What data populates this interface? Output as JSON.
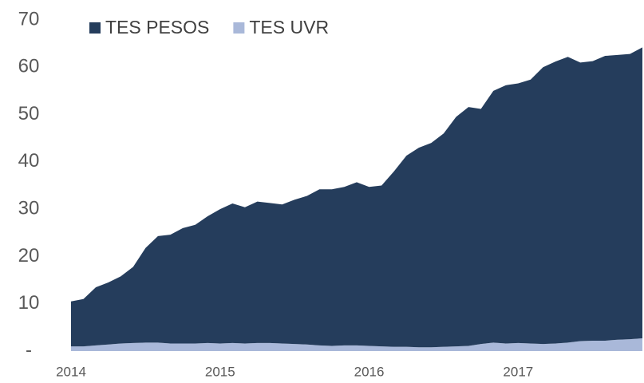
{
  "chart_data": {
    "type": "stacked-area",
    "categories": [
      "2014",
      null,
      null,
      null,
      null,
      null,
      null,
      null,
      null,
      null,
      null,
      null,
      "2015",
      null,
      null,
      null,
      null,
      null,
      null,
      null,
      null,
      null,
      null,
      null,
      "2016",
      null,
      null,
      null,
      null,
      null,
      null,
      null,
      null,
      null,
      null,
      null,
      "2017",
      null,
      null,
      null,
      null,
      null,
      null,
      null,
      null,
      null,
      null
    ],
    "series": [
      {
        "name": "TES PESOS",
        "color": "#253d5c",
        "values": [
          9.5,
          10.0,
          12.3,
          13.1,
          14.2,
          16.1,
          20.0,
          22.5,
          23.0,
          24.4,
          25.1,
          26.8,
          28.4,
          29.5,
          28.8,
          29.9,
          29.6,
          29.4,
          30.5,
          31.4,
          33.0,
          33.1,
          33.5,
          34.5,
          33.6,
          34.0,
          37.1,
          40.4,
          42.2,
          43.2,
          45.1,
          48.5,
          50.5,
          49.7,
          53.2,
          54.6,
          54.9,
          55.8,
          58.5,
          59.6,
          60.4,
          58.9,
          59.1,
          60.2,
          60.2,
          60.3,
          61.5
        ]
      },
      {
        "name": "TES UVR",
        "color": "#a9b8d9",
        "values": [
          1.0,
          1.0,
          1.2,
          1.4,
          1.6,
          1.7,
          1.8,
          1.8,
          1.6,
          1.6,
          1.6,
          1.7,
          1.6,
          1.7,
          1.6,
          1.7,
          1.7,
          1.6,
          1.5,
          1.4,
          1.2,
          1.1,
          1.2,
          1.2,
          1.1,
          1.0,
          0.9,
          0.9,
          0.8,
          0.8,
          0.9,
          1.0,
          1.1,
          1.5,
          1.8,
          1.6,
          1.7,
          1.6,
          1.5,
          1.6,
          1.8,
          2.1,
          2.2,
          2.2,
          2.4,
          2.5,
          2.7
        ]
      }
    ],
    "ylim": [
      0,
      70
    ],
    "yticks": [
      {
        "value": 0,
        "label": "-"
      },
      10,
      20,
      30,
      40,
      50,
      60,
      70
    ],
    "legend": "top"
  }
}
